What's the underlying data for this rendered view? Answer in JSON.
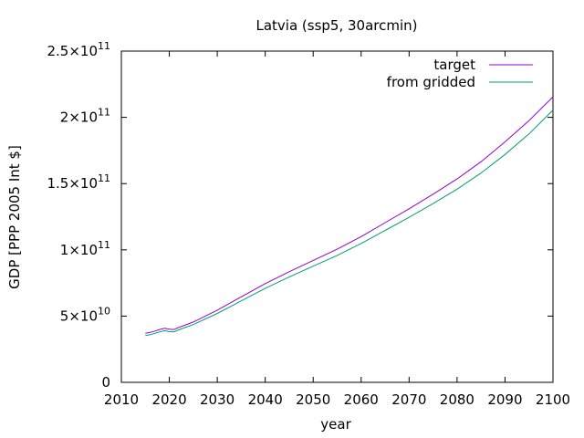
{
  "chart_data": {
    "type": "line",
    "title": "Latvia (ssp5, 30arcmin)",
    "xlabel": "year",
    "ylabel": "GDP [PPP 2005 Int $]",
    "xlim": [
      2010,
      2100
    ],
    "ylim": [
      0,
      250000000000
    ],
    "xticks": [
      {
        "value": 2010,
        "label": "2010"
      },
      {
        "value": 2020,
        "label": "2020"
      },
      {
        "value": 2030,
        "label": "2030"
      },
      {
        "value": 2040,
        "label": "2040"
      },
      {
        "value": 2050,
        "label": "2050"
      },
      {
        "value": 2060,
        "label": "2060"
      },
      {
        "value": 2070,
        "label": "2070"
      },
      {
        "value": 2080,
        "label": "2080"
      },
      {
        "value": 2090,
        "label": "2090"
      },
      {
        "value": 2100,
        "label": "2100"
      }
    ],
    "yticks": [
      {
        "value": 0,
        "mantissa": "0",
        "exponent": ""
      },
      {
        "value": 50000000000,
        "mantissa": "5×10",
        "exponent": "10"
      },
      {
        "value": 100000000000,
        "mantissa": "1×10",
        "exponent": "11"
      },
      {
        "value": 150000000000,
        "mantissa": "1.5×10",
        "exponent": "11"
      },
      {
        "value": 200000000000,
        "mantissa": "2×10",
        "exponent": "11"
      },
      {
        "value": 250000000000,
        "mantissa": "2.5×10",
        "exponent": "11"
      }
    ],
    "legend_position": "top-right",
    "grid": false,
    "x": [
      2015,
      2016,
      2017,
      2018,
      2019,
      2020,
      2021,
      2022,
      2023,
      2025,
      2030,
      2035,
      2040,
      2045,
      2050,
      2055,
      2060,
      2065,
      2070,
      2075,
      2080,
      2085,
      2090,
      2095,
      2100
    ],
    "series": [
      {
        "name": "target",
        "color": "#9400d3",
        "values": [
          37000000000,
          37700000000,
          38700000000,
          39900000000,
          40800000000,
          40100000000,
          39900000000,
          41500000000,
          42800000000,
          45500000000,
          54500000000,
          64500000000,
          74500000000,
          83500000000,
          92000000000,
          100500000000,
          110000000000,
          120500000000,
          131000000000,
          142000000000,
          153500000000,
          166500000000,
          181500000000,
          197500000000,
          215500000000
        ]
      },
      {
        "name": "from gridded",
        "color": "#009e73",
        "values": [
          35300000000,
          36000000000,
          37000000000,
          38100000000,
          39000000000,
          38300000000,
          38100000000,
          39700000000,
          41000000000,
          43600000000,
          52000000000,
          61500000000,
          71000000000,
          79500000000,
          87700000000,
          95800000000,
          104800000000,
          114700000000,
          124500000000,
          134900000000,
          145800000000,
          158000000000,
          172000000000,
          187500000000,
          205500000000
        ]
      }
    ]
  }
}
